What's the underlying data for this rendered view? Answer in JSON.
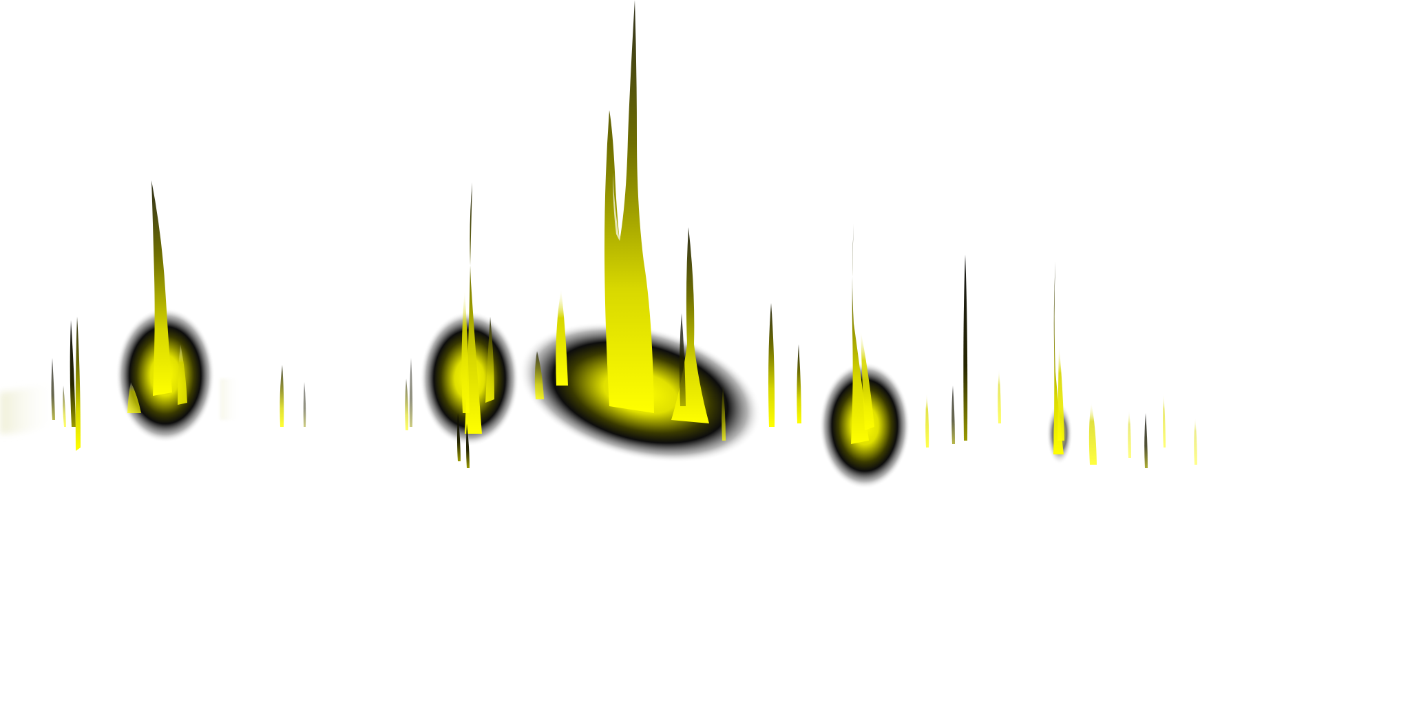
{
  "scene": {
    "kind": "abstract-flame-art",
    "palette": {
      "background": "#ffffff",
      "glow_core": "#ffff00",
      "glow_mid": "#c8c800",
      "glow_edge": "#000000",
      "flame_dark": "#1e1e08",
      "haze": "#efefd6"
    },
    "elements": [
      "left-haze",
      "left-flame-cluster",
      "orb-1",
      "flame-1",
      "small-sparks-1",
      "orb-2",
      "flame-2",
      "wide-oval-glow",
      "central-tall-flame",
      "twin-flame-peak",
      "right-spike",
      "orb-3",
      "flame-3",
      "thin-spikes-right",
      "small-capsule-glow",
      "flame-4",
      "faint-sparks-far-right"
    ]
  }
}
